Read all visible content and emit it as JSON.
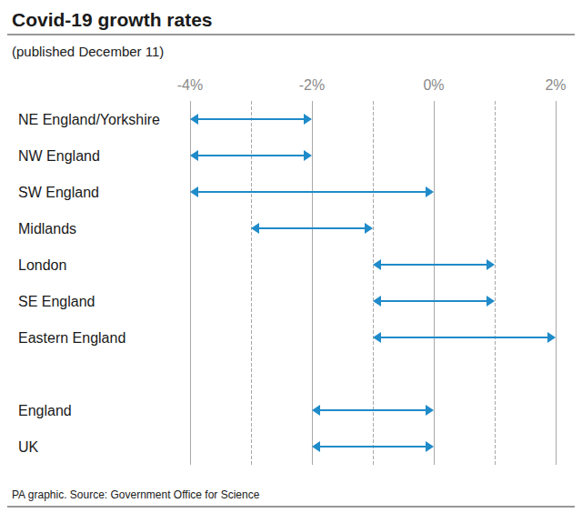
{
  "chart_data": {
    "type": "range",
    "title": "Covid-19 growth rates",
    "subtitle": "(published December 11)",
    "source": "PA graphic. Source: Government Office for Science",
    "categories": [
      "NE England/Yorkshire",
      "NW England",
      "SW England",
      "Midlands",
      "London",
      "SE England",
      "Eastern England",
      null,
      "England",
      "UK"
    ],
    "values": [
      [
        -4,
        -2
      ],
      [
        -4,
        -2
      ],
      [
        -4,
        0
      ],
      [
        -3,
        -1
      ],
      [
        -1,
        1
      ],
      [
        -1,
        1
      ],
      [
        -1,
        2
      ],
      null,
      [
        -2,
        0
      ],
      [
        -2,
        0
      ]
    ],
    "color": "#1f8bc9",
    "xlim": [
      -4,
      2
    ],
    "xticks": [
      {
        "value": -4,
        "label": "-4%"
      },
      {
        "value": -2,
        "label": "-2%"
      },
      {
        "value": 0,
        "label": "0%"
      },
      {
        "value": 2,
        "label": "2%"
      }
    ],
    "grid": true
  }
}
